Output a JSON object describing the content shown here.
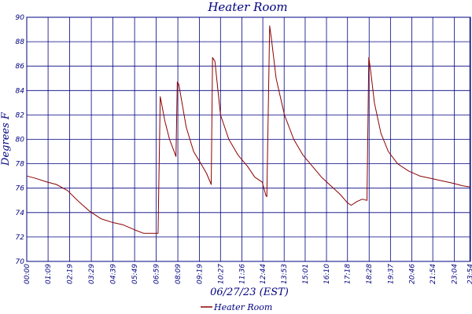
{
  "chart_data": {
    "type": "line",
    "title": "Heater Room",
    "xlabel": "06/27/23 (EST)",
    "ylabel": "Degrees F",
    "ylim": [
      70,
      90
    ],
    "yticks": [
      "70",
      "72",
      "74",
      "76",
      "78",
      "80",
      "82",
      "84",
      "86",
      "88",
      "90"
    ],
    "xlim_hours": [
      0,
      23.93
    ],
    "xticks": [
      "00:00",
      "01:09",
      "02:19",
      "03:29",
      "04:39",
      "05:49",
      "06:59",
      "08:09",
      "09:19",
      "10:27",
      "11:36",
      "12:44",
      "13:53",
      "15:01",
      "16:10",
      "17:18",
      "18:28",
      "19:37",
      "20:46",
      "21:54",
      "23:04",
      "23:54"
    ],
    "xtick_hours": [
      0,
      1.15,
      2.317,
      3.483,
      4.65,
      5.817,
      6.983,
      8.15,
      9.317,
      10.45,
      11.6,
      12.733,
      13.883,
      15.017,
      16.167,
      17.3,
      18.467,
      19.617,
      20.767,
      21.9,
      23.067,
      23.9
    ],
    "grid": true,
    "legend_position": "bottom",
    "series": [
      {
        "name": "Heater Room",
        "color": "#8b0000",
        "x": [
          0,
          0.5,
          1.1,
          1.6,
          2.2,
          2.8,
          3.4,
          4.0,
          4.6,
          5.2,
          5.8,
          6.3,
          6.6,
          7.0,
          7.08,
          7.2,
          7.45,
          7.7,
          7.9,
          8.05,
          8.12,
          8.2,
          8.6,
          9.0,
          9.4,
          9.7,
          9.95,
          10.02,
          10.15,
          10.45,
          10.9,
          11.4,
          11.9,
          12.3,
          12.7,
          12.9,
          12.95,
          13.1,
          13.2,
          13.45,
          13.9,
          14.4,
          14.9,
          15.4,
          15.9,
          16.4,
          16.9,
          17.3,
          17.5,
          17.8,
          18.1,
          18.35,
          18.45,
          18.55,
          18.75,
          19.1,
          19.5,
          20.0,
          20.6,
          21.2,
          21.8,
          22.4,
          23.0,
          23.5,
          23.9
        ],
        "y": [
          77.0,
          76.8,
          76.5,
          76.3,
          75.8,
          74.9,
          74.1,
          73.5,
          73.2,
          73.0,
          72.6,
          72.3,
          72.3,
          72.3,
          72.3,
          83.5,
          81.5,
          80.0,
          79.2,
          78.6,
          84.7,
          84.5,
          81.0,
          79.0,
          78.0,
          77.2,
          76.3,
          86.7,
          86.4,
          82.0,
          80.0,
          78.7,
          77.8,
          76.9,
          76.5,
          75.4,
          75.3,
          89.3,
          88.2,
          85.0,
          82.0,
          80.0,
          78.7,
          77.8,
          76.9,
          76.2,
          75.5,
          74.8,
          74.6,
          74.9,
          75.1,
          75.0,
          86.7,
          85.6,
          83.0,
          80.5,
          79.0,
          78.0,
          77.4,
          77.0,
          76.8,
          76.6,
          76.4,
          76.2,
          76.1
        ]
      }
    ]
  }
}
